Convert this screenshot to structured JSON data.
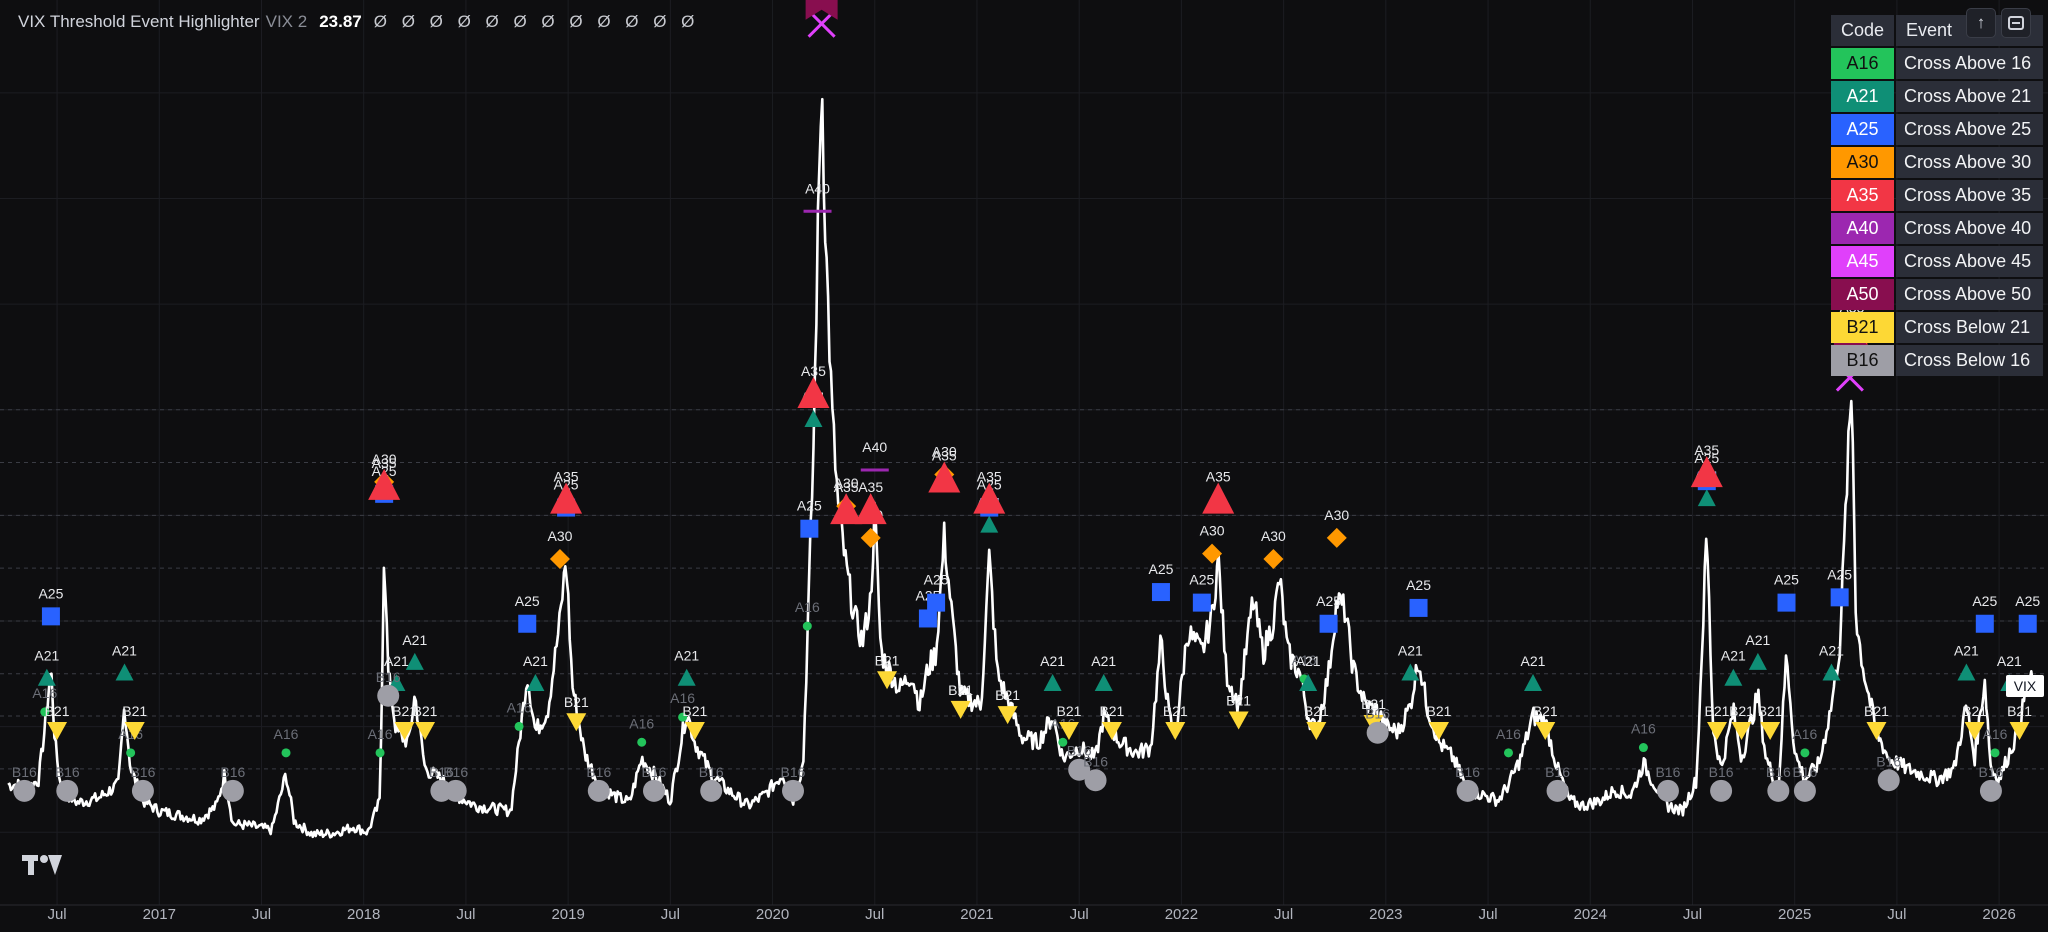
{
  "header": {
    "title": "VIX Threshold Event Highlighter",
    "subtitle": "VIX 2",
    "value": "23.87",
    "na_values": "Ø Ø Ø Ø Ø Ø Ø Ø Ø Ø Ø Ø"
  },
  "toolbar": {
    "share_symbol": "↑"
  },
  "price_tag": {
    "label": "VIX",
    "value": 23.87,
    "color": "#ffffff"
  },
  "events_table": {
    "headers": [
      "Code",
      "Event"
    ],
    "rows": [
      {
        "code": "A16",
        "event": "Cross Above 16",
        "color": "#23c45b",
        "text_color": "#111111"
      },
      {
        "code": "A21",
        "event": "Cross Above 21",
        "color": "#0f8f76",
        "text_color": "#ffffff"
      },
      {
        "code": "A25",
        "event": "Cross Above 25",
        "color": "#2962ff",
        "text_color": "#ffffff"
      },
      {
        "code": "A30",
        "event": "Cross Above 30",
        "color": "#ff9800",
        "text_color": "#111111"
      },
      {
        "code": "A35",
        "event": "Cross Above 35",
        "color": "#f23645",
        "text_color": "#ffffff"
      },
      {
        "code": "A40",
        "event": "Cross Above 40",
        "color": "#9c27b0",
        "text_color": "#ffffff"
      },
      {
        "code": "A45",
        "event": "Cross Above 45",
        "color": "#e040fb",
        "text_color": "#ffffff"
      },
      {
        "code": "A50",
        "event": "Cross Above 50",
        "color": "#880e4f",
        "text_color": "#ffffff"
      },
      {
        "code": "B21",
        "event": "Cross Below 21",
        "color": "#fdd835",
        "text_color": "#111111"
      },
      {
        "code": "B16",
        "event": "Cross Below 16",
        "color": "#9e9ea6",
        "text_color": "#111111"
      }
    ]
  },
  "chart_data": {
    "type": "line",
    "series": [
      {
        "name": "VIX",
        "color": "#ffffff",
        "points": [
          [
            2016.3,
            14.5
          ],
          [
            2016.36,
            14.2
          ],
          [
            2016.41,
            15.0
          ],
          [
            2016.45,
            21.5
          ],
          [
            2016.47,
            25.7
          ],
          [
            2016.49,
            18.5
          ],
          [
            2016.52,
            14.0
          ],
          [
            2016.6,
            12.8
          ],
          [
            2016.7,
            13.2
          ],
          [
            2016.8,
            14.5
          ],
          [
            2016.83,
            22.0
          ],
          [
            2016.86,
            16.0
          ],
          [
            2016.92,
            13.0
          ],
          [
            2017.0,
            12.0
          ],
          [
            2017.1,
            11.6
          ],
          [
            2017.2,
            11.2
          ],
          [
            2017.28,
            12.5
          ],
          [
            2017.32,
            15.5
          ],
          [
            2017.36,
            10.8
          ],
          [
            2017.45,
            10.6
          ],
          [
            2017.55,
            10.2
          ],
          [
            2017.62,
            15.5
          ],
          [
            2017.66,
            11.0
          ],
          [
            2017.75,
            9.8
          ],
          [
            2017.85,
            9.9
          ],
          [
            2017.95,
            10.5
          ],
          [
            2018.02,
            10.0
          ],
          [
            2018.08,
            13.0
          ],
          [
            2018.1,
            37.3
          ],
          [
            2018.12,
            25.0
          ],
          [
            2018.16,
            19.5
          ],
          [
            2018.22,
            18.5
          ],
          [
            2018.25,
            23.0
          ],
          [
            2018.3,
            16.0
          ],
          [
            2018.38,
            15.0
          ],
          [
            2018.45,
            13.5
          ],
          [
            2018.55,
            12.5
          ],
          [
            2018.65,
            12.2
          ],
          [
            2018.72,
            12.0
          ],
          [
            2018.76,
            18.5
          ],
          [
            2018.8,
            25.0
          ],
          [
            2018.84,
            19.5
          ],
          [
            2018.9,
            21.5
          ],
          [
            2018.96,
            30.0
          ],
          [
            2018.99,
            36.0
          ],
          [
            2019.02,
            24.0
          ],
          [
            2019.08,
            17.5
          ],
          [
            2019.15,
            14.5
          ],
          [
            2019.22,
            13.5
          ],
          [
            2019.3,
            12.8
          ],
          [
            2019.36,
            17.0
          ],
          [
            2019.42,
            15.5
          ],
          [
            2019.5,
            13.0
          ],
          [
            2019.58,
            21.5
          ],
          [
            2019.62,
            18.5
          ],
          [
            2019.7,
            15.5
          ],
          [
            2019.78,
            14.0
          ],
          [
            2019.88,
            12.5
          ],
          [
            2019.96,
            13.5
          ],
          [
            2020.05,
            15.5
          ],
          [
            2020.1,
            13.0
          ],
          [
            2020.15,
            16.5
          ],
          [
            2020.17,
            28.0
          ],
          [
            2020.2,
            46.0
          ],
          [
            2020.22,
            65.0
          ],
          [
            2020.24,
            82.0
          ],
          [
            2020.26,
            66.0
          ],
          [
            2020.29,
            50.0
          ],
          [
            2020.32,
            41.0
          ],
          [
            2020.36,
            35.0
          ],
          [
            2020.4,
            30.5
          ],
          [
            2020.44,
            28.0
          ],
          [
            2020.48,
            32.0
          ],
          [
            2020.5,
            40.5
          ],
          [
            2020.53,
            27.0
          ],
          [
            2020.58,
            25.0
          ],
          [
            2020.62,
            23.5
          ],
          [
            2020.68,
            25.0
          ],
          [
            2020.72,
            22.0
          ],
          [
            2020.76,
            25.5
          ],
          [
            2020.8,
            27.0
          ],
          [
            2020.84,
            38.0
          ],
          [
            2020.88,
            30.0
          ],
          [
            2020.92,
            23.0
          ],
          [
            2020.97,
            22.5
          ],
          [
            2021.02,
            22.0
          ],
          [
            2021.06,
            36.0
          ],
          [
            2021.1,
            25.0
          ],
          [
            2021.15,
            22.5
          ],
          [
            2021.22,
            19.0
          ],
          [
            2021.3,
            18.5
          ],
          [
            2021.37,
            21.0
          ],
          [
            2021.42,
            17.0
          ],
          [
            2021.5,
            18.0
          ],
          [
            2021.58,
            17.0
          ],
          [
            2021.62,
            21.0
          ],
          [
            2021.7,
            18.5
          ],
          [
            2021.78,
            17.5
          ],
          [
            2021.85,
            18.0
          ],
          [
            2021.9,
            28.0
          ],
          [
            2021.94,
            21.0
          ],
          [
            2021.97,
            19.0
          ],
          [
            2022.03,
            29.0
          ],
          [
            2022.1,
            27.0
          ],
          [
            2022.15,
            30.5
          ],
          [
            2022.18,
            36.0
          ],
          [
            2022.22,
            25.0
          ],
          [
            2022.28,
            22.0
          ],
          [
            2022.35,
            32.0
          ],
          [
            2022.4,
            27.0
          ],
          [
            2022.45,
            30.0
          ],
          [
            2022.48,
            34.0
          ],
          [
            2022.52,
            27.0
          ],
          [
            2022.58,
            25.0
          ],
          [
            2022.62,
            21.0
          ],
          [
            2022.66,
            19.5
          ],
          [
            2022.72,
            25.0
          ],
          [
            2022.76,
            32.0
          ],
          [
            2022.8,
            31.0
          ],
          [
            2022.84,
            25.5
          ],
          [
            2022.9,
            22.0
          ],
          [
            2022.96,
            21.5
          ],
          [
            2023.0,
            20.0
          ],
          [
            2023.06,
            19.5
          ],
          [
            2023.12,
            22.0
          ],
          [
            2023.16,
            26.5
          ],
          [
            2023.2,
            22.0
          ],
          [
            2023.26,
            18.5
          ],
          [
            2023.33,
            17.0
          ],
          [
            2023.4,
            14.0
          ],
          [
            2023.48,
            13.5
          ],
          [
            2023.55,
            13.0
          ],
          [
            2023.6,
            14.5
          ],
          [
            2023.66,
            17.0
          ],
          [
            2023.72,
            21.0
          ],
          [
            2023.78,
            20.5
          ],
          [
            2023.84,
            16.0
          ],
          [
            2023.9,
            13.0
          ],
          [
            2023.96,
            12.5
          ],
          [
            2024.05,
            13.0
          ],
          [
            2024.12,
            14.0
          ],
          [
            2024.2,
            13.5
          ],
          [
            2024.26,
            16.5
          ],
          [
            2024.3,
            15.0
          ],
          [
            2024.38,
            12.5
          ],
          [
            2024.45,
            12.0
          ],
          [
            2024.52,
            15.0
          ],
          [
            2024.57,
            38.5
          ],
          [
            2024.6,
            20.0
          ],
          [
            2024.64,
            16.0
          ],
          [
            2024.7,
            21.5
          ],
          [
            2024.74,
            17.0
          ],
          [
            2024.82,
            23.0
          ],
          [
            2024.86,
            17.0
          ],
          [
            2024.92,
            14.0
          ],
          [
            2024.96,
            27.0
          ],
          [
            2025.0,
            17.5
          ],
          [
            2025.05,
            15.0
          ],
          [
            2025.12,
            16.5
          ],
          [
            2025.18,
            22.0
          ],
          [
            2025.22,
            27.5
          ],
          [
            2025.26,
            45.0
          ],
          [
            2025.28,
            52.0
          ],
          [
            2025.3,
            30.0
          ],
          [
            2025.34,
            25.0
          ],
          [
            2025.4,
            19.5
          ],
          [
            2025.46,
            17.0
          ],
          [
            2025.55,
            16.0
          ],
          [
            2025.62,
            15.5
          ],
          [
            2025.7,
            15.0
          ],
          [
            2025.78,
            16.0
          ],
          [
            2025.84,
            22.0
          ],
          [
            2025.88,
            17.0
          ],
          [
            2025.93,
            24.5
          ],
          [
            2025.96,
            16.0
          ],
          [
            2026.0,
            15.0
          ],
          [
            2026.05,
            17.5
          ],
          [
            2026.1,
            20.0
          ],
          [
            2026.14,
            24.5
          ],
          [
            2026.18,
            23.87
          ]
        ]
      }
    ],
    "markers": [
      {
        "code": "A16",
        "x": [
          2016.44,
          2016.86,
          2017.62,
          2018.08,
          2018.76,
          2019.36,
          2019.56,
          2020.17,
          2021.42,
          2022.6,
          2023.6,
          2024.26,
          2025.05,
          2025.98
        ]
      },
      {
        "code": "A21",
        "x": [
          2016.45,
          2016.83,
          2018.16,
          2018.25,
          2018.84,
          2019.58,
          2020.2,
          2021.06,
          2021.37,
          2021.62,
          2022.62,
          2023.12,
          2023.72,
          2024.57,
          2024.7,
          2024.82,
          2025.18,
          2025.84,
          2026.05
        ]
      },
      {
        "code": "A25",
        "x": [
          2016.47,
          2018.1,
          2018.8,
          2018.99,
          2020.18,
          2020.76,
          2020.8,
          2021.06,
          2021.9,
          2022.1,
          2022.72,
          2023.16,
          2024.57,
          2024.96,
          2025.22,
          2025.93,
          2026.14
        ]
      },
      {
        "code": "A30",
        "x": [
          2018.1,
          2018.96,
          2020.36,
          2020.48,
          2020.84,
          2022.15,
          2022.45,
          2022.76,
          2025.28
        ]
      },
      {
        "code": "A35",
        "x": [
          2018.1,
          2018.99,
          2020.2,
          2020.36,
          2020.48,
          2020.84,
          2021.06,
          2022.18,
          2024.57,
          2025.28
        ]
      },
      {
        "code": "A40",
        "x": [
          2020.22,
          2020.5,
          2025.28
        ]
      },
      {
        "code": "A45",
        "x": [
          2020.24,
          2025.27
        ]
      },
      {
        "code": "A50",
        "x": [
          2020.24,
          2025.27
        ]
      },
      {
        "code": "B21",
        "x": [
          2016.5,
          2016.88,
          2018.2,
          2018.3,
          2019.04,
          2019.62,
          2020.56,
          2020.92,
          2021.15,
          2021.45,
          2021.66,
          2021.97,
          2022.28,
          2022.66,
          2022.94,
          2023.26,
          2023.78,
          2024.62,
          2024.74,
          2024.88,
          2025.4,
          2025.88,
          2026.1
        ]
      },
      {
        "code": "B16",
        "x": [
          2016.34,
          2016.55,
          2016.92,
          2017.36,
          2018.12,
          2018.38,
          2018.45,
          2019.15,
          2019.42,
          2019.7,
          2020.1,
          2021.5,
          2021.58,
          2022.96,
          2023.4,
          2023.84,
          2024.38,
          2024.64,
          2024.92,
          2025.05,
          2025.46,
          2025.96
        ]
      }
    ],
    "x_ticks": [
      {
        "x": 2016.5,
        "label": "Jul"
      },
      {
        "x": 2017.0,
        "label": "2017"
      },
      {
        "x": 2017.5,
        "label": "Jul"
      },
      {
        "x": 2018.0,
        "label": "2018"
      },
      {
        "x": 2018.5,
        "label": "Jul"
      },
      {
        "x": 2019.0,
        "label": "2019"
      },
      {
        "x": 2019.5,
        "label": "Jul"
      },
      {
        "x": 2020.0,
        "label": "2020"
      },
      {
        "x": 2020.5,
        "label": "Jul"
      },
      {
        "x": 2021.0,
        "label": "2021"
      },
      {
        "x": 2021.5,
        "label": "Jul"
      },
      {
        "x": 2022.0,
        "label": "2022"
      },
      {
        "x": 2022.5,
        "label": "Jul"
      },
      {
        "x": 2023.0,
        "label": "2023"
      },
      {
        "x": 2023.5,
        "label": "Jul"
      },
      {
        "x": 2024.0,
        "label": "2024"
      },
      {
        "x": 2024.5,
        "label": "Jul"
      },
      {
        "x": 2025.0,
        "label": "2025"
      },
      {
        "x": 2025.5,
        "label": "Jul"
      },
      {
        "x": 2026.0,
        "label": "2026"
      }
    ],
    "threshold_lines": [
      16,
      21,
      25,
      30,
      35,
      40,
      45,
      50
    ],
    "xlim": [
      2016.26,
      2026.2
    ],
    "ylim": [
      5,
      85
    ],
    "grid": true,
    "legend": "top-right"
  }
}
